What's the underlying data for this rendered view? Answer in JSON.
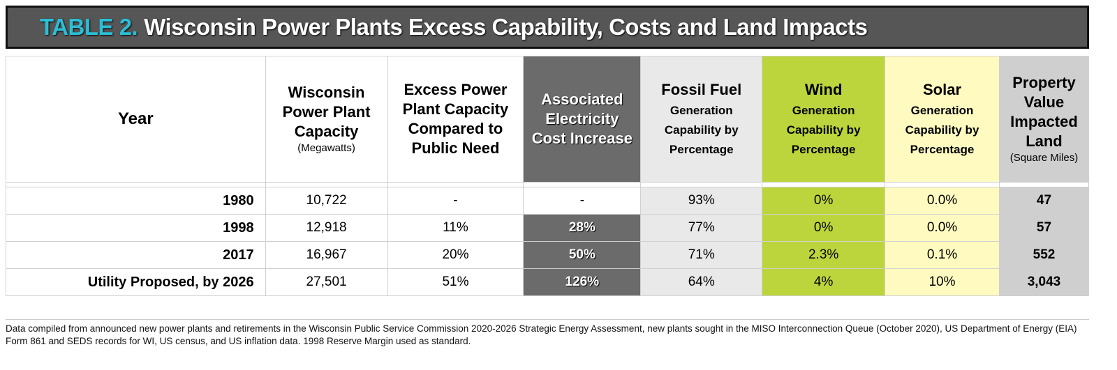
{
  "title": {
    "number": "TABLE 2.",
    "text": "Wisconsin Power Plants Excess Capability, Costs and Land Impacts"
  },
  "headers": {
    "year": "Year",
    "capacity": {
      "main": "Wisconsin Power Plant Capacity",
      "sub": "(Megawatts)"
    },
    "excess": "Excess Power Plant Capacity Compared to Public Need",
    "assoc": "Associated Electricity Cost Increase",
    "fossil": {
      "main": "Fossil Fuel",
      "sub": "Generation Capability by Percentage"
    },
    "wind": {
      "main": "Wind",
      "sub": "Generation Capability by Percentage"
    },
    "solar": {
      "main": "Solar",
      "sub": "Generation Capability by Percentage"
    },
    "property": {
      "main": "Property Value Impacted Land",
      "sub": "(Square Miles)"
    }
  },
  "rows": [
    {
      "year": "1980",
      "capacity": "10,722",
      "excess": "-",
      "assoc": "-",
      "fossil": "93%",
      "wind": "0%",
      "solar": "0.0%",
      "property": "47"
    },
    {
      "year": "1998",
      "capacity": "12,918",
      "excess": "11%",
      "assoc": "28%",
      "fossil": "77%",
      "wind": "0%",
      "solar": "0.0%",
      "property": "57"
    },
    {
      "year": "2017",
      "capacity": "16,967",
      "excess": "20%",
      "assoc": "50%",
      "fossil": "71%",
      "wind": "2.3%",
      "solar": "0.1%",
      "property": "552"
    },
    {
      "year": "Utility Proposed, by 2026",
      "capacity": "27,501",
      "excess": "51%",
      "assoc": "126%",
      "fossil": "64%",
      "wind": "4%",
      "solar": "10%",
      "property": "3,043"
    }
  ],
  "footnote": "Data compiled from announced new power plants and retirements in the Wisconsin Public Service Commission 2020-2026  Strategic Energy Assessment, new plants sought in the MISO Interconnection Queue (October 2020), US Department of Energy (EIA) Form 861 and SEDS records for WI, US census, and US inflation data. 1998 Reserve Margin used as standard."
}
